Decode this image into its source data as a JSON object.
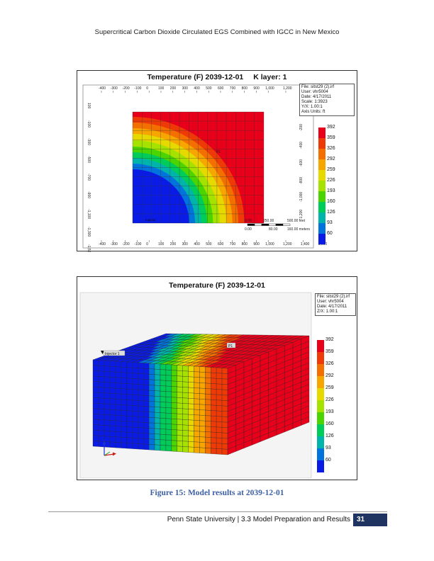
{
  "header": {
    "title": "Supercritical Carbon Dioxide Circulated EGS Combined with IGCC in New Mexico"
  },
  "figure1": {
    "title": "Temperature (F) 2039-12-01",
    "layer": "K layer: 1",
    "info": [
      "File: sitst29 (2).irf",
      "User: vhr5004",
      "Date: 4/17/2011",
      "Scale: 1:3923",
      "Y/X: 1.00:1",
      "Axis Units: ft"
    ],
    "x_ticks": [
      "-400",
      "-300",
      "-200",
      "-100",
      "0",
      "100",
      "200",
      "300",
      "400",
      "500",
      "600",
      "700",
      "800",
      "900",
      "1,000",
      "1,200",
      "1,400",
      "1,600"
    ],
    "y_ticks_left": [
      "100",
      "-100",
      "-300",
      "-500",
      "-700",
      "-900",
      "-1,100",
      "-1,300",
      "-1,500"
    ],
    "y_ticks_right": [
      "200",
      "0",
      "-200",
      "-400",
      "-600",
      "-800",
      "-1,000",
      "-1,200"
    ],
    "well_labels": [
      "P1",
      "Injector"
    ],
    "scale_bar": {
      "row1": [
        "0.00",
        "250.00",
        "500.00 feet"
      ],
      "row2": [
        "0.00",
        "80.00",
        "160.00 meters"
      ]
    }
  },
  "figure2": {
    "title": "Temperature (F) 2039-12-01",
    "info": [
      "File: sitst29 (2).irf",
      "User: vhr5004",
      "Date: 4/17/2011",
      "Z/X: 1.00:1"
    ],
    "well_labels": [
      "Injector 1",
      "P1"
    ]
  },
  "legend": {
    "values": [
      "392",
      "359",
      "326",
      "292",
      "259",
      "226",
      "193",
      "160",
      "126",
      "93",
      "60"
    ],
    "colors": [
      "#e8001a",
      "#ee3a06",
      "#f26f00",
      "#f7a600",
      "#e6d900",
      "#a6e200",
      "#4bd400",
      "#00cc5a",
      "#00b4ac",
      "#0074dc",
      "#0a1be6"
    ]
  },
  "caption": "Figure 15: Model results at 2039-12-01",
  "footer": {
    "text": "Penn State University | 3.3 Model Preparation and Results",
    "page": "31"
  }
}
